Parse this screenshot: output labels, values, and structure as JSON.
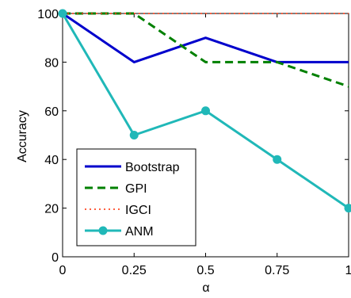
{
  "chart_data": {
    "type": "line",
    "title": "",
    "xlabel": "α",
    "ylabel": "Accuracy",
    "x": [
      0,
      0.25,
      0.5,
      0.75,
      1
    ],
    "x_tick_labels": [
      "0",
      "0.25",
      "0.5",
      "0.75",
      "1"
    ],
    "xlim": [
      0,
      1
    ],
    "ylim": [
      0,
      100
    ],
    "y_ticks": [
      0,
      20,
      40,
      60,
      80,
      100
    ],
    "y_tick_labels": [
      "0",
      "20",
      "40",
      "60",
      "80",
      "100"
    ],
    "grid": false,
    "legend_position": "bottom-left",
    "series": [
      {
        "name": "Bootstrap",
        "values": [
          100,
          80,
          90,
          80,
          80
        ],
        "color": "#0000cc",
        "style": "solid",
        "marker": "none"
      },
      {
        "name": "GPI",
        "values": [
          100,
          100,
          80,
          80,
          70
        ],
        "color": "#008000",
        "style": "dashed",
        "marker": "none"
      },
      {
        "name": "IGCI",
        "values": [
          100,
          100,
          100,
          100,
          100
        ],
        "color": "#ff2a00",
        "style": "dotted",
        "marker": "none"
      },
      {
        "name": "ANM",
        "values": [
          100,
          50,
          60,
          40,
          20
        ],
        "color": "#20b8b8",
        "style": "solid",
        "marker": "circle"
      }
    ]
  }
}
